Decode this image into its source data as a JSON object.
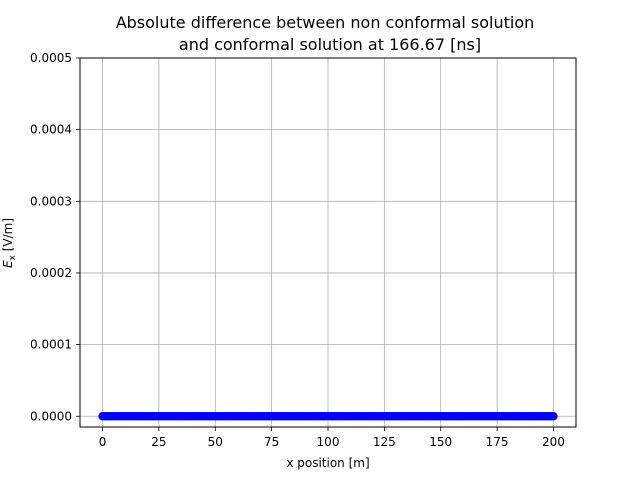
{
  "chart_data": {
    "type": "scatter",
    "title_line1": "Absolute difference between non conformal solution",
    "title_line2": "and conformal solution at 166.67 [ns]",
    "xlabel": "x position [m]",
    "ylabel_main": "E",
    "ylabel_sub": "x",
    "ylabel_unit": " [V/m]",
    "xlim": [
      -10,
      210
    ],
    "ylim": [
      -1.5e-05,
      0.0005
    ],
    "xticks": [
      0,
      25,
      50,
      75,
      100,
      125,
      150,
      175,
      200
    ],
    "xtick_labels": [
      "0",
      "25",
      "50",
      "75",
      "100",
      "125",
      "150",
      "175",
      "200"
    ],
    "yticks": [
      0.0,
      0.0001,
      0.0002,
      0.0003,
      0.0004,
      0.0005
    ],
    "ytick_labels": [
      "0.0000",
      "0.0001",
      "0.0002",
      "0.0003",
      "0.0004",
      "0.0005"
    ],
    "grid": true,
    "marker_color": "#0000ff",
    "series": [
      {
        "x_start": 0,
        "x_end": 200,
        "x_step": 1,
        "y_constant": 0.0
      }
    ]
  }
}
